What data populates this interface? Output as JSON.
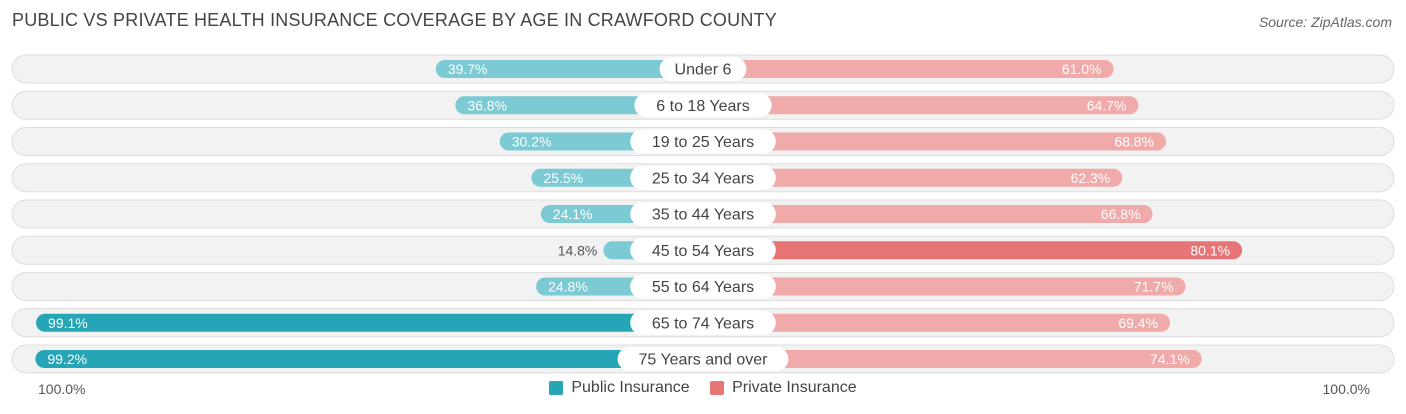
{
  "chart_data": {
    "type": "bar",
    "title": "PUBLIC VS PRIVATE HEALTH INSURANCE COVERAGE BY AGE IN CRAWFORD COUNTY",
    "source": "Source: ZipAtlas.com",
    "categories": [
      "Under 6",
      "6 to 18 Years",
      "19 to 25 Years",
      "25 to 34 Years",
      "35 to 44 Years",
      "45 to 54 Years",
      "55 to 64 Years",
      "65 to 74 Years",
      "75 Years and over"
    ],
    "series": [
      {
        "name": "Public Insurance",
        "values": [
          39.7,
          36.8,
          30.2,
          25.5,
          24.1,
          14.8,
          24.8,
          99.1,
          99.2
        ],
        "labels": [
          "39.7%",
          "36.8%",
          "30.2%",
          "25.5%",
          "24.1%",
          "14.8%",
          "24.8%",
          "99.1%",
          "99.2%"
        ]
      },
      {
        "name": "Private Insurance",
        "values": [
          61.0,
          64.7,
          68.8,
          62.3,
          66.8,
          80.1,
          71.7,
          69.4,
          74.1
        ],
        "labels": [
          "61.0%",
          "64.7%",
          "68.8%",
          "62.3%",
          "66.8%",
          "80.1%",
          "71.7%",
          "69.4%",
          "74.1%"
        ]
      }
    ],
    "axis_min_label": "100.0%",
    "axis_max_label": "100.0%",
    "xlim": [
      -100,
      100
    ],
    "legend_position": "bottom-center"
  },
  "colors": {
    "public_light": "#7ccad3",
    "public_dark": "#26a5b6",
    "private_light": "#f0aaa9",
    "private_dark": "#e87575",
    "row_bg": "#f2f2f2",
    "row_border": "#dedede"
  }
}
